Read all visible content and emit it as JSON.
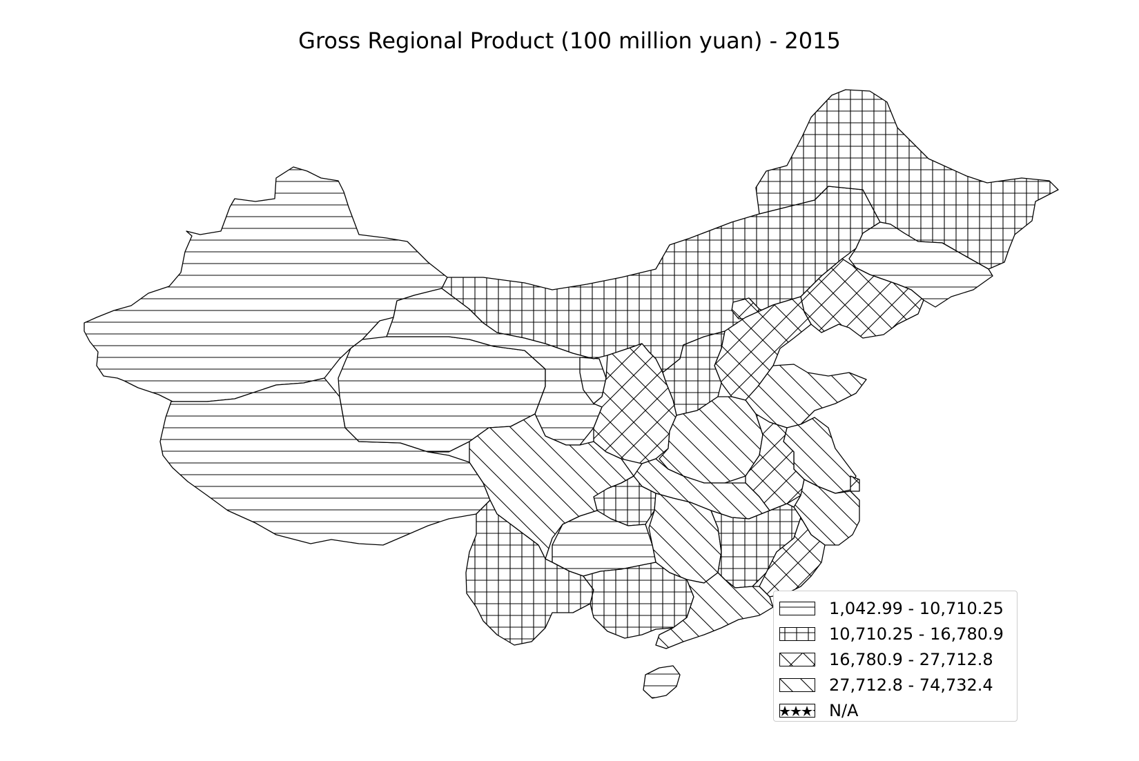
{
  "title": "Gross Regional Product (100 million yuan) - 2015",
  "legend": {
    "items": [
      {
        "label": "1,042.99 - 10,710.25",
        "pattern": "horizontal-lines"
      },
      {
        "label": "10,710.25 - 16,780.9",
        "pattern": "grid"
      },
      {
        "label": "16,780.9 - 27,712.8",
        "pattern": "diagonal-cross"
      },
      {
        "label": "27,712.8 - 74,732.4",
        "pattern": "back-diagonal"
      },
      {
        "label": "N/A",
        "pattern": "stars"
      }
    ]
  },
  "colors": {
    "stroke": "#000000",
    "background": "#ffffff",
    "legend_border": "#cccccc"
  }
}
